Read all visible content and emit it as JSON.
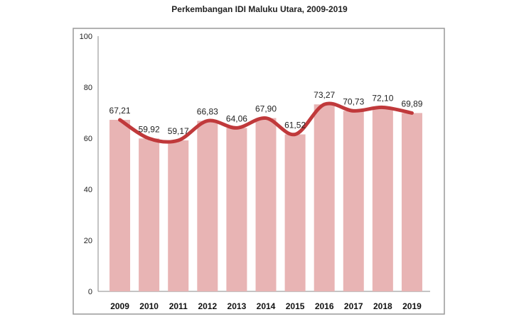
{
  "chart_data": {
    "type": "bar",
    "title": "Perkembangan IDI Maluku Utara, 2009-2019",
    "categories": [
      "2009",
      "2010",
      "2011",
      "2012",
      "2013",
      "2014",
      "2015",
      "2016",
      "2017",
      "2018",
      "2019"
    ],
    "values": [
      67.21,
      59.92,
      59.17,
      66.83,
      64.06,
      67.9,
      61.52,
      73.27,
      70.73,
      72.1,
      69.89
    ],
    "value_labels": [
      "67,21",
      "59,92",
      "59,17",
      "66,83",
      "64,06",
      "67,90",
      "61,52",
      "73,27",
      "70,73",
      "72,10",
      "69,89"
    ],
    "overlay_line": "smoothed line through bar values",
    "ylim": [
      0,
      100
    ],
    "yticks": [
      "0",
      "20",
      "40",
      "60",
      "80",
      "100"
    ],
    "xlabel": "",
    "ylabel": "",
    "grid": false,
    "legend": "none",
    "colors": {
      "bar": "#e8b4b4",
      "line": "#c0393b",
      "frame": "#999999"
    }
  }
}
